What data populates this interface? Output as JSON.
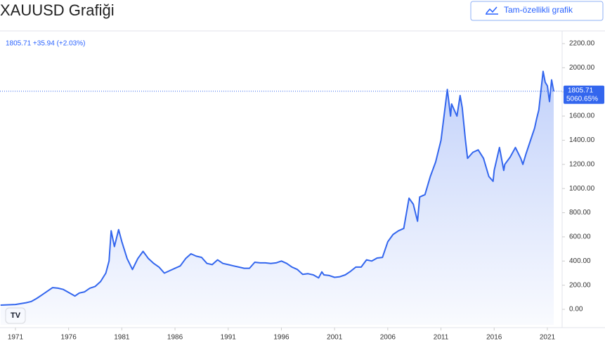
{
  "header": {
    "title": "XAUUSD Grafiği",
    "button": "Tam-özellikli grafik"
  },
  "chart_data": {
    "type": "area",
    "legend_text": "1805.71 +35.94 (+2.03%)",
    "last_price": {
      "value": 1805.71,
      "label": "1805.71"
    },
    "last_change": "5060.65%",
    "color": "#3366ee",
    "x": [
      1969.6,
      1970,
      1971,
      1972,
      1972.5,
      1973,
      1973.5,
      1974,
      1974.5,
      1975,
      1975.5,
      1976,
      1976.6,
      1977,
      1977.5,
      1978,
      1978.5,
      1979,
      1979.5,
      1979.8,
      1980,
      1980.3,
      1980.7,
      1981,
      1981.5,
      1982,
      1982.5,
      1983,
      1983.5,
      1984,
      1984.5,
      1985,
      1985.5,
      1986,
      1986.5,
      1987,
      1987.5,
      1988,
      1988.5,
      1989,
      1989.5,
      1990,
      1990.5,
      1991,
      1991.5,
      1992,
      1992.5,
      1993,
      1993.5,
      1994,
      1994.5,
      1995,
      1995.5,
      1996,
      1996.5,
      1997,
      1997.5,
      1998,
      1998.5,
      1999,
      1999.5,
      1999.8,
      2000,
      2000.5,
      2001,
      2001.5,
      2002,
      2002.5,
      2003,
      2003.5,
      2004,
      2004.5,
      2005,
      2005.5,
      2006,
      2006.5,
      2007,
      2007.5,
      2008,
      2008.4,
      2008.8,
      2009,
      2009.5,
      2010,
      2010.5,
      2011,
      2011.6,
      2011.9,
      2012,
      2012.5,
      2012.8,
      2013,
      2013.3,
      2013.5,
      2014,
      2014.5,
      2015,
      2015.5,
      2015.9,
      2016,
      2016.5,
      2016.9,
      2017,
      2017.5,
      2018,
      2018.5,
      2018.7,
      2019,
      2019.5,
      2019.8,
      2020,
      2020.2,
      2020.6,
      2020.8,
      2021,
      2021.2,
      2021.4,
      2021.6
    ],
    "values": [
      35,
      36,
      40,
      55,
      65,
      90,
      120,
      150,
      180,
      175,
      165,
      140,
      110,
      135,
      145,
      175,
      190,
      230,
      300,
      400,
      650,
      520,
      660,
      560,
      420,
      330,
      420,
      480,
      420,
      380,
      350,
      300,
      320,
      340,
      360,
      420,
      460,
      440,
      430,
      380,
      370,
      410,
      380,
      370,
      360,
      350,
      340,
      340,
      390,
      385,
      385,
      380,
      385,
      400,
      380,
      350,
      330,
      290,
      295,
      285,
      260,
      310,
      285,
      280,
      265,
      270,
      285,
      315,
      350,
      350,
      410,
      400,
      425,
      430,
      560,
      620,
      650,
      670,
      920,
      870,
      730,
      930,
      950,
      1100,
      1220,
      1400,
      1820,
      1600,
      1700,
      1600,
      1770,
      1670,
      1400,
      1250,
      1300,
      1320,
      1250,
      1100,
      1060,
      1150,
      1340,
      1150,
      1200,
      1260,
      1340,
      1250,
      1200,
      1290,
      1420,
      1500,
      1580,
      1650,
      1970,
      1880,
      1850,
      1720,
      1900,
      1805.71
    ],
    "xlim": [
      1969.55,
      2022.39
    ],
    "xticks": [
      1971,
      1976,
      1981,
      1986,
      1991,
      1996,
      2001,
      2006,
      2011,
      2016,
      2021
    ],
    "ylim": [
      -128,
      2299
    ],
    "yticks": [
      {
        "value": 0,
        "label": "0.00"
      },
      {
        "value": 200,
        "label": "200.00"
      },
      {
        "value": 400,
        "label": "400.00"
      },
      {
        "value": 600,
        "label": "600.00"
      },
      {
        "value": 800,
        "label": "800.00"
      },
      {
        "value": 1000,
        "label": "1000.00"
      },
      {
        "value": 1200,
        "label": "1200.00"
      },
      {
        "value": 1400,
        "label": "1400.00"
      },
      {
        "value": 1600,
        "label": "1600.00"
      },
      {
        "value": 1800,
        "label": "1800.00"
      },
      {
        "value": 2000,
        "label": "2000.00"
      },
      {
        "value": 2200,
        "label": "2200.00"
      }
    ]
  }
}
